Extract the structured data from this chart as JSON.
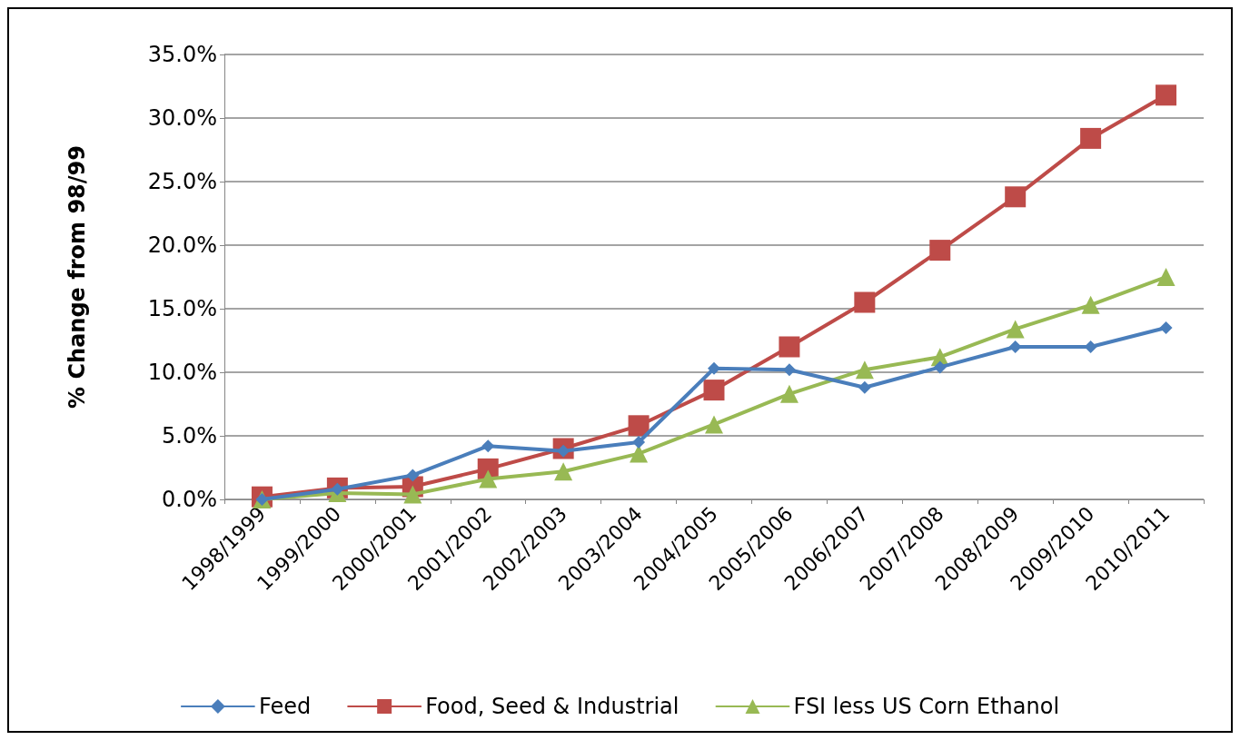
{
  "chart_data": {
    "type": "line",
    "ylabel": "% Change from 98/99",
    "categories": [
      "1998/1999",
      "1999/2000",
      "2000/2001",
      "2001/2002",
      "2002/2003",
      "2003/2004",
      "2004/2005",
      "2005/2006",
      "2006/2007",
      "2007/2008",
      "2008/2009",
      "2009/2010",
      "2010/2011"
    ],
    "series": [
      {
        "name": "Feed",
        "color": "#4a7ebb",
        "marker": "diamond",
        "values": [
          0,
          0.8,
          1.9,
          4.2,
          3.8,
          4.5,
          10.3,
          10.2,
          8.8,
          10.4,
          12.0,
          12.0,
          13.5
        ]
      },
      {
        "name": "Food, Seed & Industrial",
        "color": "#be4b48",
        "marker": "square",
        "values": [
          0.2,
          0.9,
          1.0,
          2.4,
          4.0,
          5.8,
          8.6,
          12.0,
          15.5,
          19.6,
          23.8,
          28.4,
          31.8
        ]
      },
      {
        "name": "FSI less US Corn Ethanol",
        "color": "#98b954",
        "marker": "triangle",
        "values": [
          0,
          0.5,
          0.4,
          1.6,
          2.2,
          3.6,
          5.9,
          8.3,
          10.2,
          11.2,
          13.4,
          15.3,
          17.5
        ]
      }
    ],
    "ylim": [
      0,
      35
    ],
    "yticks": [
      {
        "value": 0,
        "label": "0.0%"
      },
      {
        "value": 5,
        "label": "5.0%"
      },
      {
        "value": 10,
        "label": "10.0%"
      },
      {
        "value": 15,
        "label": "15.0%"
      },
      {
        "value": 20,
        "label": "20.0%"
      },
      {
        "value": 25,
        "label": "25.0%"
      },
      {
        "value": 30,
        "label": "30.0%"
      },
      {
        "value": 35,
        "label": "35.0%"
      }
    ],
    "grid": "y",
    "legend": "bottom",
    "line_style": "solid"
  }
}
